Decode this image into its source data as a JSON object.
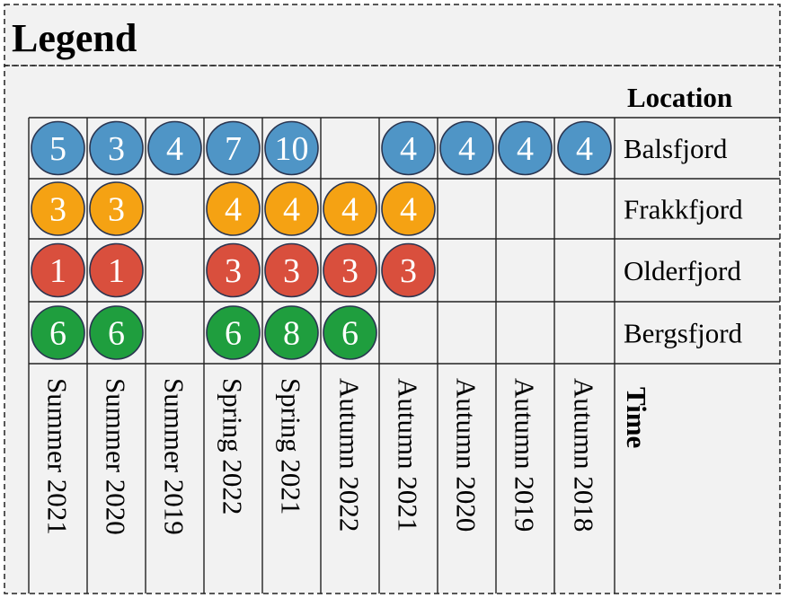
{
  "legend": {
    "title": "Legend",
    "location_header": "Location",
    "time_header": "Time"
  },
  "times": [
    "Summer 2021",
    "Summer 2020",
    "Summer 2019",
    "Spring 2022",
    "Spring 2021",
    "Autumn 2022",
    "Autumn 2021",
    "Autumn 2020",
    "Autumn 2019",
    "Autumn 2018"
  ],
  "locations": [
    {
      "name": "Balsfjord",
      "color": "#4f95c6",
      "values": [
        5,
        3,
        4,
        7,
        10,
        null,
        4,
        4,
        4,
        4
      ]
    },
    {
      "name": "Frakkfjord",
      "color": "#f5a213",
      "values": [
        3,
        3,
        null,
        4,
        4,
        4,
        4,
        null,
        null,
        null
      ]
    },
    {
      "name": "Olderfjord",
      "color": "#d94f3d",
      "values": [
        1,
        1,
        null,
        3,
        3,
        3,
        3,
        null,
        null,
        null
      ]
    },
    {
      "name": "Bergsfjord",
      "color": "#1f9e3e",
      "values": [
        6,
        6,
        null,
        6,
        8,
        6,
        null,
        null,
        null,
        null
      ]
    }
  ],
  "colors": {
    "background": "#f2f2f2",
    "circle_stroke": "#2a3550",
    "grid": "#222222"
  }
}
